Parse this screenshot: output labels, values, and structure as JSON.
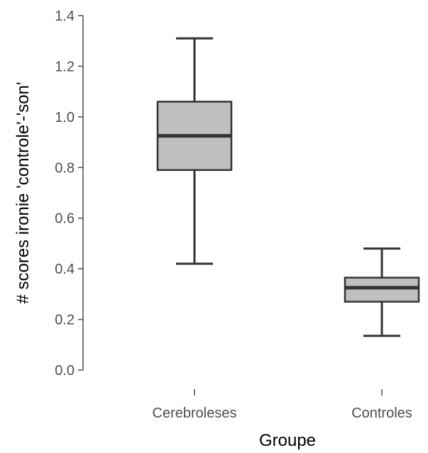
{
  "chart_data": {
    "type": "box",
    "xlabel": "Groupe",
    "ylabel": "# scores ironie 'controle'-'son'",
    "ylim": [
      0.0,
      1.4
    ],
    "yticks": [
      "0.0",
      "0.2",
      "0.4",
      "0.6",
      "0.8",
      "1.0",
      "1.2",
      "1.4"
    ],
    "categories": [
      "Cerebroleses",
      "Controles"
    ],
    "boxes": [
      {
        "category": "Cerebroleses",
        "min": 0.42,
        "q1": 0.79,
        "median": 0.925,
        "q3": 1.06,
        "max": 1.31
      },
      {
        "category": "Controles",
        "min": 0.135,
        "q1": 0.27,
        "median": 0.325,
        "q3": 0.365,
        "max": 0.48
      }
    ],
    "colors": {
      "box_fill": "#bfbfbf",
      "line": "#333333",
      "axis": "#4d4d4d"
    },
    "grid": false,
    "legend": "none"
  }
}
